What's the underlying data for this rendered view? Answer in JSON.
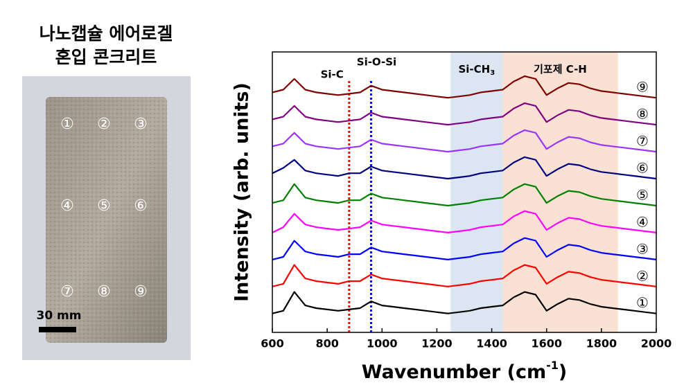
{
  "photo": {
    "title": [
      "나노캡슐 에어로겔",
      "혼입 콘크리트"
    ],
    "markers": [
      "①",
      "②",
      "③",
      "④",
      "⑤",
      "⑥",
      "⑦",
      "⑧",
      "⑨"
    ],
    "scale_bar": "30 mm"
  },
  "chart_data": {
    "type": "line",
    "x_label": {
      "text": "Wavenumber (cm",
      "sup": "-1",
      "after": ")"
    },
    "y_label": "Intensity (arb. units)",
    "xlim": [
      600,
      2000
    ],
    "xticks": [
      600,
      800,
      1000,
      1200,
      1400,
      1600,
      1800,
      2000
    ],
    "ylim": [
      -0.6,
      9.8
    ],
    "bands": [
      {
        "range": [
          1250,
          1440
        ],
        "color": "#dbe6f2",
        "label": {
          "text": "Si-CH",
          "sub": "3"
        }
      },
      {
        "range": [
          1440,
          1860
        ],
        "color": "#fbe1d3",
        "label": {
          "text": "기포제 C-H"
        }
      }
    ],
    "vlines": [
      {
        "x": 880,
        "color": "#ff0000",
        "label": "Si-C"
      },
      {
        "x": 960,
        "color": "#0000ff",
        "label": "Si-O-Si"
      }
    ],
    "x": [
      600,
      640,
      680,
      720,
      760,
      800,
      840,
      880,
      920,
      960,
      1000,
      1040,
      1080,
      1120,
      1160,
      1200,
      1240,
      1280,
      1320,
      1360,
      1400,
      1440,
      1480,
      1520,
      1560,
      1600,
      1640,
      1680,
      1720,
      1760,
      1800,
      1840,
      1880,
      1920,
      1960,
      2000
    ],
    "series": [
      {
        "name": "①",
        "color": "#000000",
        "values": [
          0.1,
          0.2,
          0.9,
          0.4,
          0.3,
          0.25,
          0.2,
          0.25,
          0.3,
          0.55,
          0.4,
          0.35,
          0.3,
          0.25,
          0.2,
          0.15,
          0.1,
          0.15,
          0.2,
          0.3,
          0.35,
          0.4,
          0.7,
          0.9,
          0.8,
          0.2,
          0.45,
          0.65,
          0.6,
          0.45,
          0.35,
          0.3,
          0.25,
          0.2,
          0.15,
          0.1
        ]
      },
      {
        "name": "②",
        "color": "#ff0000",
        "values": [
          1.1,
          1.2,
          1.9,
          1.4,
          1.3,
          1.25,
          1.2,
          1.3,
          1.3,
          1.55,
          1.4,
          1.35,
          1.3,
          1.25,
          1.2,
          1.15,
          1.1,
          1.15,
          1.2,
          1.3,
          1.35,
          1.4,
          1.7,
          1.9,
          1.8,
          1.2,
          1.45,
          1.65,
          1.6,
          1.45,
          1.35,
          1.3,
          1.25,
          1.2,
          1.15,
          1.1
        ]
      },
      {
        "name": "③",
        "color": "#0000ff",
        "values": [
          2.1,
          2.2,
          2.8,
          2.4,
          2.3,
          2.25,
          2.2,
          2.3,
          2.3,
          2.55,
          2.4,
          2.35,
          2.3,
          2.25,
          2.2,
          2.15,
          2.1,
          2.15,
          2.2,
          2.3,
          2.35,
          2.4,
          2.7,
          2.9,
          2.8,
          2.2,
          2.45,
          2.65,
          2.6,
          2.45,
          2.35,
          2.3,
          2.25,
          2.2,
          2.15,
          2.1
        ]
      },
      {
        "name": "④",
        "color": "#ff00ff",
        "values": [
          3.1,
          3.3,
          3.8,
          3.4,
          3.3,
          3.25,
          3.2,
          3.25,
          3.3,
          3.55,
          3.4,
          3.35,
          3.3,
          3.25,
          3.2,
          3.15,
          3.1,
          3.15,
          3.2,
          3.3,
          3.35,
          3.4,
          3.7,
          3.9,
          3.8,
          3.2,
          3.45,
          3.65,
          3.6,
          3.45,
          3.35,
          3.3,
          3.25,
          3.2,
          3.15,
          3.1
        ]
      },
      {
        "name": "⑤",
        "color": "#008000",
        "values": [
          4.2,
          4.3,
          4.9,
          4.4,
          4.3,
          4.25,
          4.2,
          4.3,
          4.3,
          4.55,
          4.4,
          4.35,
          4.3,
          4.25,
          4.2,
          4.15,
          4.1,
          4.15,
          4.2,
          4.3,
          4.35,
          4.4,
          4.7,
          4.9,
          4.8,
          4.2,
          4.45,
          4.65,
          4.6,
          4.45,
          4.35,
          4.3,
          4.25,
          4.2,
          4.15,
          4.1
        ]
      },
      {
        "name": "⑥",
        "color": "#000080",
        "values": [
          5.3,
          5.5,
          5.8,
          5.4,
          5.3,
          5.25,
          5.2,
          5.3,
          5.3,
          5.55,
          5.4,
          5.35,
          5.3,
          5.25,
          5.2,
          5.15,
          5.1,
          5.15,
          5.2,
          5.3,
          5.35,
          5.4,
          5.7,
          5.9,
          5.8,
          5.2,
          5.45,
          5.65,
          5.6,
          5.45,
          5.35,
          5.3,
          5.25,
          5.2,
          5.15,
          5.1
        ]
      },
      {
        "name": "⑦",
        "color": "#9933ff",
        "values": [
          6.3,
          6.4,
          6.8,
          6.4,
          6.3,
          6.25,
          6.2,
          6.25,
          6.3,
          6.55,
          6.4,
          6.35,
          6.3,
          6.25,
          6.2,
          6.15,
          6.1,
          6.15,
          6.2,
          6.3,
          6.35,
          6.4,
          6.7,
          6.9,
          6.8,
          6.2,
          6.45,
          6.65,
          6.6,
          6.45,
          6.35,
          6.3,
          6.25,
          6.2,
          6.15,
          6.1
        ]
      },
      {
        "name": "⑧",
        "color": "#800080",
        "values": [
          7.3,
          7.4,
          7.8,
          7.4,
          7.3,
          7.25,
          7.2,
          7.25,
          7.3,
          7.55,
          7.4,
          7.35,
          7.3,
          7.25,
          7.2,
          7.15,
          7.1,
          7.15,
          7.2,
          7.3,
          7.35,
          7.4,
          7.7,
          7.9,
          7.8,
          7.2,
          7.45,
          7.65,
          7.6,
          7.45,
          7.35,
          7.3,
          7.25,
          7.2,
          7.15,
          7.1
        ]
      },
      {
        "name": "⑨",
        "color": "#800000",
        "values": [
          8.3,
          8.4,
          8.8,
          8.4,
          8.3,
          8.25,
          8.2,
          8.25,
          8.3,
          8.55,
          8.4,
          8.35,
          8.3,
          8.25,
          8.2,
          8.15,
          8.1,
          8.15,
          8.2,
          8.3,
          8.35,
          8.4,
          8.7,
          8.9,
          8.8,
          8.2,
          8.45,
          8.65,
          8.6,
          8.45,
          8.35,
          8.3,
          8.25,
          8.2,
          8.15,
          8.1
        ]
      }
    ]
  }
}
